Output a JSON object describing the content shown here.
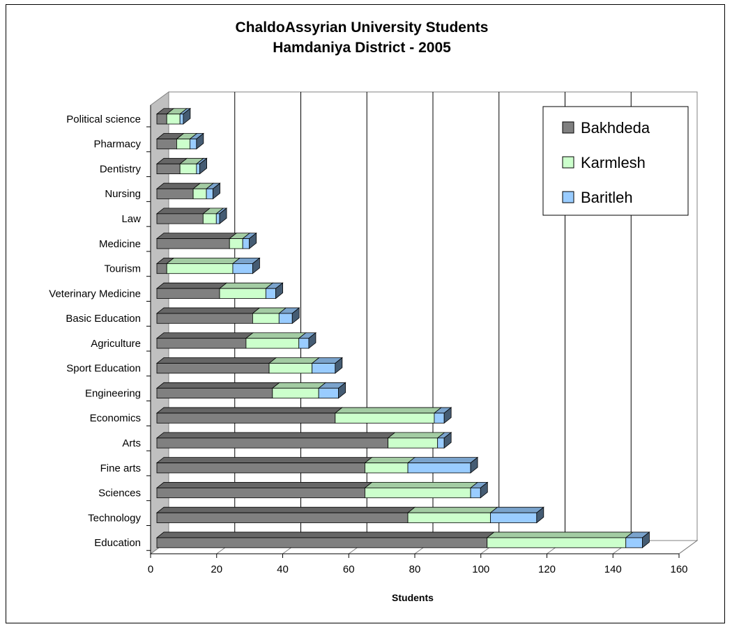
{
  "chart_data": {
    "type": "bar",
    "orientation": "horizontal",
    "stacked": true,
    "style": "3d",
    "title": "ChaldoAssyrian University Students",
    "subtitle": "Hamdaniya District - 2005",
    "xlabel": "Students",
    "ylabel": "",
    "xlim": [
      0,
      160
    ],
    "x_ticks": [
      "0",
      "20",
      "40",
      "60",
      "80",
      "100",
      "120",
      "140",
      "160"
    ],
    "grid": "vertical major gridlines",
    "legend_position": "top-right",
    "categories": [
      "Education",
      "Technology",
      "Sciences",
      "Fine arts",
      "Arts",
      "Economics",
      "Engineering",
      "Sport Education",
      "Agriculture",
      "Basic Education",
      "Veterinary Medicine",
      "Tourism",
      "Medicine",
      "Law",
      "Nursing",
      "Dentistry",
      "Pharmacy",
      "Political science"
    ],
    "series": [
      {
        "name": "Bakhdeda",
        "color": "#808080",
        "values": [
          100,
          76,
          63,
          63,
          70,
          54,
          35,
          34,
          27,
          29,
          19,
          3,
          22,
          14,
          11,
          7,
          6,
          3
        ]
      },
      {
        "name": "Karmlesh",
        "color": "#ccffcc",
        "values": [
          42,
          25,
          32,
          13,
          15,
          30,
          14,
          13,
          16,
          8,
          14,
          20,
          4,
          4,
          4,
          5,
          4,
          4
        ]
      },
      {
        "name": "Baritleh",
        "color": "#99ccff",
        "values": [
          5,
          14,
          3,
          19,
          2,
          3,
          6,
          7,
          3,
          4,
          3,
          6,
          2,
          1,
          2,
          1,
          2,
          1
        ]
      }
    ]
  }
}
